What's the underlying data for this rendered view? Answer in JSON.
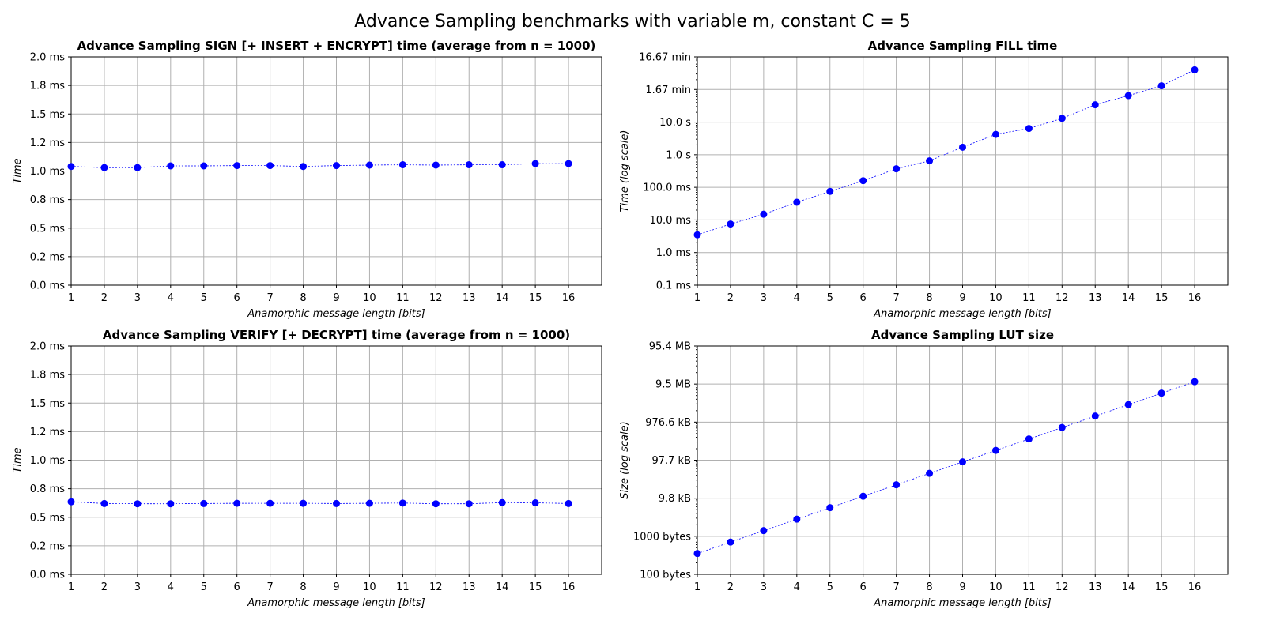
{
  "figure": {
    "suptitle": "Advance Sampling benchmarks with variable m, constant C = 5"
  },
  "chart_data": [
    {
      "type": "line",
      "title": "Advance Sampling SIGN [+ INSERT + ENCRYPT] time (average from n = 1000)",
      "xlabel": "Anamorphic message length [bits]",
      "ylabel": "Time",
      "scale": "linear",
      "unit": "ms",
      "xlim": [
        1,
        17
      ],
      "ylim": [
        0,
        2.0
      ],
      "grid": true,
      "x": [
        1,
        2,
        3,
        4,
        5,
        6,
        7,
        8,
        9,
        10,
        11,
        12,
        13,
        14,
        15,
        16
      ],
      "y": [
        1.04,
        1.03,
        1.03,
        1.045,
        1.045,
        1.048,
        1.048,
        1.04,
        1.048,
        1.052,
        1.055,
        1.052,
        1.055,
        1.055,
        1.065,
        1.065
      ],
      "xticks": [
        "1",
        "2",
        "3",
        "4",
        "5",
        "6",
        "7",
        "8",
        "9",
        "10",
        "11",
        "12",
        "13",
        "14",
        "15",
        "16"
      ],
      "yticks": [
        {
          "v": 0.0,
          "label": "0.0 ms"
        },
        {
          "v": 0.25,
          "label": "0.2 ms"
        },
        {
          "v": 0.5,
          "label": "0.5 ms"
        },
        {
          "v": 0.75,
          "label": "0.8 ms"
        },
        {
          "v": 1.0,
          "label": "1.0 ms"
        },
        {
          "v": 1.25,
          "label": "1.2 ms"
        },
        {
          "v": 1.5,
          "label": "1.5 ms"
        },
        {
          "v": 1.75,
          "label": "1.8 ms"
        },
        {
          "v": 2.0,
          "label": "2.0 ms"
        }
      ],
      "color": "#0000ff"
    },
    {
      "type": "line",
      "title": "Advance Sampling FILL time",
      "xlabel": "Anamorphic message length [bits]",
      "ylabel": "Time (log scale)",
      "scale": "log",
      "unit": "s",
      "xlim": [
        1,
        17
      ],
      "ylim": [
        0.0001,
        1000
      ],
      "grid": true,
      "x": [
        1,
        2,
        3,
        4,
        5,
        6,
        7,
        8,
        9,
        10,
        11,
        12,
        13,
        14,
        15,
        16
      ],
      "y": [
        0.0035,
        0.0075,
        0.015,
        0.035,
        0.075,
        0.16,
        0.37,
        0.65,
        1.7,
        4.2,
        6.4,
        13,
        34,
        65,
        130,
        400
      ],
      "xticks": [
        "1",
        "2",
        "3",
        "4",
        "5",
        "6",
        "7",
        "8",
        "9",
        "10",
        "11",
        "12",
        "13",
        "14",
        "15",
        "16"
      ],
      "yticks": [
        {
          "v": 0.0001,
          "label": "0.1 ms"
        },
        {
          "v": 0.001,
          "label": "1.0 ms"
        },
        {
          "v": 0.01,
          "label": "10.0 ms"
        },
        {
          "v": 0.1,
          "label": "100.0 ms"
        },
        {
          "v": 1,
          "label": "1.0 s"
        },
        {
          "v": 10,
          "label": "10.0 s"
        },
        {
          "v": 100,
          "label": "1.67 min"
        },
        {
          "v": 1000,
          "label": "16.67 min"
        }
      ],
      "color": "#0000ff"
    },
    {
      "type": "line",
      "title": "Advance Sampling VERIFY [+ DECRYPT] time (average from n = 1000)",
      "xlabel": "Anamorphic message length [bits]",
      "ylabel": "Time",
      "scale": "linear",
      "unit": "ms",
      "xlim": [
        1,
        17
      ],
      "ylim": [
        0,
        2.0
      ],
      "grid": true,
      "x": [
        1,
        2,
        3,
        4,
        5,
        6,
        7,
        8,
        9,
        10,
        11,
        12,
        13,
        14,
        15,
        16
      ],
      "y": [
        0.635,
        0.62,
        0.618,
        0.618,
        0.62,
        0.622,
        0.622,
        0.622,
        0.62,
        0.622,
        0.624,
        0.618,
        0.618,
        0.628,
        0.626,
        0.62
      ],
      "xticks": [
        "1",
        "2",
        "3",
        "4",
        "5",
        "6",
        "7",
        "8",
        "9",
        "10",
        "11",
        "12",
        "13",
        "14",
        "15",
        "16"
      ],
      "yticks": [
        {
          "v": 0.0,
          "label": "0.0 ms"
        },
        {
          "v": 0.25,
          "label": "0.2 ms"
        },
        {
          "v": 0.5,
          "label": "0.5 ms"
        },
        {
          "v": 0.75,
          "label": "0.8 ms"
        },
        {
          "v": 1.0,
          "label": "1.0 ms"
        },
        {
          "v": 1.25,
          "label": "1.2 ms"
        },
        {
          "v": 1.5,
          "label": "1.5 ms"
        },
        {
          "v": 1.75,
          "label": "1.8 ms"
        },
        {
          "v": 2.0,
          "label": "2.0 ms"
        }
      ],
      "color": "#0000ff"
    },
    {
      "type": "line",
      "title": "Advance Sampling LUT size",
      "xlabel": "Anamorphic message length [bits]",
      "ylabel": "Size (log scale)",
      "scale": "log",
      "unit": "bytes",
      "xlim": [
        1,
        17
      ],
      "ylim": [
        100,
        100000000
      ],
      "grid": true,
      "x": [
        1,
        2,
        3,
        4,
        5,
        6,
        7,
        8,
        9,
        10,
        11,
        12,
        13,
        14,
        15,
        16
      ],
      "y": [
        352,
        704,
        1408,
        2816,
        5632,
        11264,
        22528,
        45056,
        90112,
        180224,
        360448,
        720896,
        1441792,
        2883584,
        5767168,
        11534336
      ],
      "xticks": [
        "1",
        "2",
        "3",
        "4",
        "5",
        "6",
        "7",
        "8",
        "9",
        "10",
        "11",
        "12",
        "13",
        "14",
        "15",
        "16"
      ],
      "yticks": [
        {
          "v": 100,
          "label": "100 bytes"
        },
        {
          "v": 1000,
          "label": "1000 bytes"
        },
        {
          "v": 10000,
          "label": "9.8 kB"
        },
        {
          "v": 100000,
          "label": "97.7 kB"
        },
        {
          "v": 1000000,
          "label": "976.6 kB"
        },
        {
          "v": 10000000,
          "label": "9.5 MB"
        },
        {
          "v": 100000000,
          "label": "95.4 MB"
        }
      ],
      "color": "#0000ff"
    }
  ]
}
